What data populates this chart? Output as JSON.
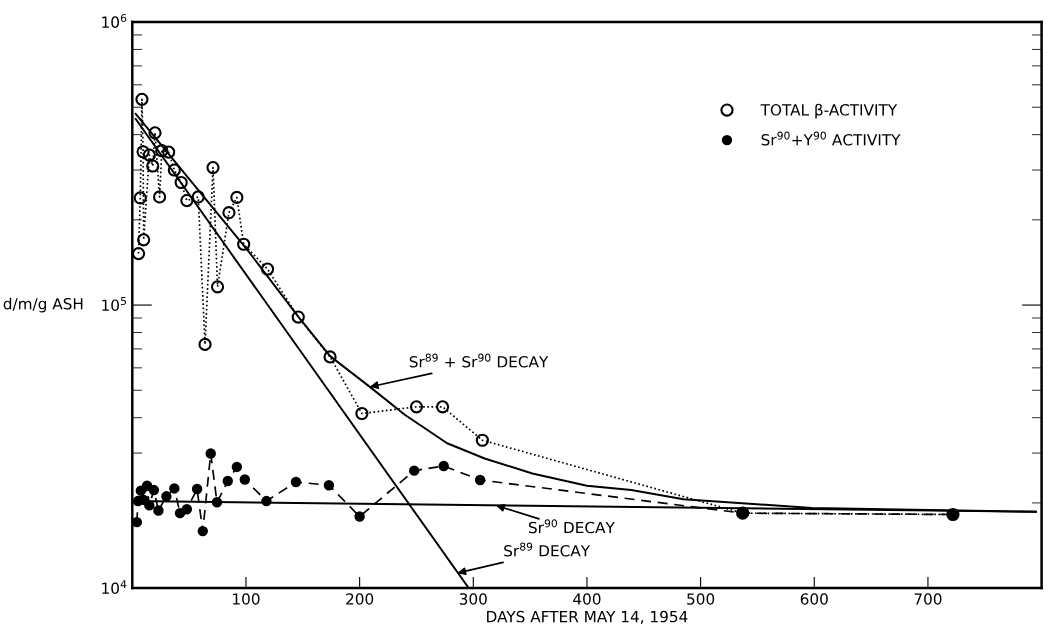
{
  "chart_data": {
    "type": "line",
    "xlabel": "DAYS AFTER MAY 14, 1954",
    "ylabel": "d/m/g ASH",
    "log": "y",
    "xlim": [
      0,
      800
    ],
    "xticks": [
      100,
      200,
      300,
      400,
      500,
      600,
      700
    ],
    "ylim": [
      10000,
      1000000
    ],
    "yticks": [
      {
        "value": 10000,
        "label": "10$^{4}$"
      },
      {
        "value": 100000,
        "label": "10$^{5}$"
      },
      {
        "value": 1000000,
        "label": "10$^{6}$"
      }
    ],
    "grid": false,
    "legend": "top right",
    "series": [
      {
        "name": "TOTAL β-ACTIVITY",
        "color": "#000000",
        "marker": "circle",
        "line_style": "dotted",
        "x": [
          5.5,
          7,
          8.5,
          9.5,
          10,
          15,
          18,
          20,
          24,
          26,
          32,
          37,
          43,
          48,
          58,
          64,
          71,
          75,
          85,
          92,
          98,
          119,
          146,
          174,
          202,
          250,
          273,
          308,
          537,
          722
        ],
        "values": [
          152000,
          239000,
          533000,
          348000,
          170000,
          339000,
          310000,
          406000,
          241000,
          351000,
          347000,
          300000,
          271000,
          234000,
          241000,
          72600,
          306000,
          116000,
          212000,
          240000,
          164000,
          134000,
          90700,
          65600,
          41400,
          43700,
          43700,
          33300,
          18400,
          18200
        ]
      },
      {
        "name": "Sr$^{90}$+Y$^{90}$ ACTIVITY",
        "color": "#000000",
        "marker": "circle",
        "line_style": "dashed",
        "x": [
          4,
          5,
          7.5,
          10,
          13,
          15,
          19,
          23,
          30,
          37,
          42,
          48,
          57,
          62,
          69,
          74.5,
          84,
          92,
          99,
          118,
          144,
          173,
          200,
          248,
          274,
          306,
          537,
          722
        ],
        "values": [
          17100,
          20300,
          22100,
          20500,
          23000,
          19600,
          22200,
          18800,
          21100,
          22500,
          18400,
          19000,
          22400,
          15900,
          29900,
          20100,
          23900,
          26800,
          24200,
          20300,
          23700,
          23100,
          17900,
          26000,
          27000,
          24100,
          18400,
          18200
        ]
      },
      {
        "color": "#000000",
        "marker": "none",
        "line_style": "solid",
        "x": [
          3,
          100,
          146,
          174,
          209,
          240,
          277,
          310,
          352,
          400,
          439,
          485,
          598,
          795
        ],
        "values": [
          474000,
          159000,
          91000,
          66000,
          51400,
          40900,
          32500,
          28700,
          25400,
          23000,
          22200,
          20600,
          19200,
          18600
        ]
      },
      {
        "color": "#000000",
        "marker": "none",
        "line_style": "solid",
        "x": [
          3,
          296
        ],
        "values": [
          454000,
          10000
        ]
      },
      {
        "color": "#000000",
        "marker": "none",
        "line_style": "solid",
        "x": [
          0,
          795
        ],
        "values": [
          20300,
          18600
        ]
      }
    ],
    "annotations": [
      {
        "text": "Sr$^{89}$ + Sr$^{90}$ DECAY",
        "x": 209,
        "y": 51400
      },
      {
        "text": "Sr$^{90}$ DECAY",
        "x": 320,
        "y": 19600
      },
      {
        "text": "Sr$^{89}$ DECAY",
        "x": 286,
        "y": 11300
      }
    ]
  }
}
